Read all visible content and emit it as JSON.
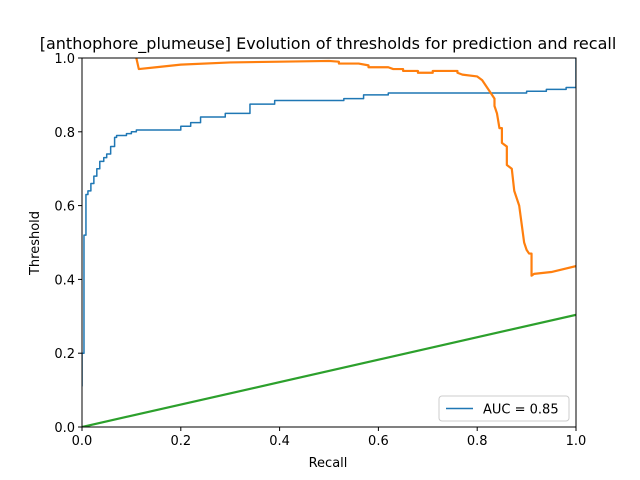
{
  "chart_data": {
    "type": "line",
    "title": "[anthophore_plumeuse] Evolution of thresholds for prediction and recall",
    "xlabel": "Recall",
    "ylabel": "Threshold",
    "xlim": [
      0,
      1
    ],
    "ylim": [
      0,
      1
    ],
    "xticks": [
      "0.0",
      "0.2",
      "0.4",
      "0.6",
      "0.8",
      "1.0"
    ],
    "yticks": [
      "0.0",
      "0.2",
      "0.4",
      "0.6",
      "0.8",
      "1.0"
    ],
    "grid": false,
    "legend": {
      "placement": "lower-right",
      "entries": [
        "AUC = 0.85"
      ]
    },
    "series": [
      {
        "name": "AUC = 0.85",
        "color": "#1f77b4",
        "style": "step",
        "x": [
          0.0,
          0.0,
          0.004,
          0.004,
          0.008,
          0.008,
          0.012,
          0.012,
          0.018,
          0.018,
          0.024,
          0.024,
          0.03,
          0.03,
          0.036,
          0.036,
          0.044,
          0.044,
          0.05,
          0.05,
          0.058,
          0.058,
          0.066,
          0.066,
          0.07,
          0.07,
          0.09,
          0.09,
          0.1,
          0.1,
          0.11,
          0.11,
          0.2,
          0.2,
          0.22,
          0.22,
          0.24,
          0.24,
          0.29,
          0.29,
          0.34,
          0.34,
          0.39,
          0.39,
          0.53,
          0.53,
          0.57,
          0.57,
          0.62,
          0.62,
          0.9,
          0.9,
          0.94,
          0.94,
          0.98,
          0.98,
          1.0,
          1.0
        ],
        "y": [
          0.11,
          0.2,
          0.2,
          0.52,
          0.52,
          0.63,
          0.63,
          0.64,
          0.64,
          0.66,
          0.66,
          0.68,
          0.68,
          0.7,
          0.7,
          0.72,
          0.72,
          0.73,
          0.73,
          0.74,
          0.74,
          0.76,
          0.76,
          0.785,
          0.785,
          0.79,
          0.79,
          0.795,
          0.795,
          0.8,
          0.8,
          0.805,
          0.805,
          0.815,
          0.815,
          0.825,
          0.825,
          0.84,
          0.84,
          0.85,
          0.85,
          0.875,
          0.875,
          0.885,
          0.885,
          0.89,
          0.89,
          0.9,
          0.9,
          0.905,
          0.905,
          0.91,
          0.91,
          0.915,
          0.915,
          0.92,
          0.92,
          1.0
        ]
      },
      {
        "name": "",
        "color": "#ff7f0e",
        "style": "line",
        "x": [
          0.11,
          0.115,
          0.15,
          0.2,
          0.3,
          0.4,
          0.5,
          0.52,
          0.52,
          0.56,
          0.58,
          0.58,
          0.62,
          0.63,
          0.65,
          0.65,
          0.68,
          0.68,
          0.71,
          0.71,
          0.76,
          0.76,
          0.77,
          0.8,
          0.81,
          0.82,
          0.83,
          0.835,
          0.835,
          0.84,
          0.845,
          0.85,
          0.85,
          0.86,
          0.86,
          0.87,
          0.875,
          0.88,
          0.885,
          0.89,
          0.895,
          0.9,
          0.905,
          0.91,
          0.91,
          0.915,
          0.95,
          1.0
        ],
        "y": [
          1.0,
          0.97,
          0.975,
          0.982,
          0.988,
          0.99,
          0.992,
          0.99,
          0.985,
          0.985,
          0.98,
          0.975,
          0.975,
          0.97,
          0.97,
          0.965,
          0.965,
          0.96,
          0.96,
          0.965,
          0.965,
          0.96,
          0.955,
          0.95,
          0.94,
          0.92,
          0.9,
          0.89,
          0.87,
          0.85,
          0.81,
          0.81,
          0.77,
          0.76,
          0.71,
          0.7,
          0.64,
          0.62,
          0.6,
          0.55,
          0.5,
          0.48,
          0.47,
          0.47,
          0.41,
          0.415,
          0.42,
          0.436
        ]
      },
      {
        "name": "",
        "color": "#2ca02c",
        "style": "line",
        "x": [
          0.0,
          1.0
        ],
        "y": [
          0.0,
          0.304
        ]
      }
    ]
  }
}
